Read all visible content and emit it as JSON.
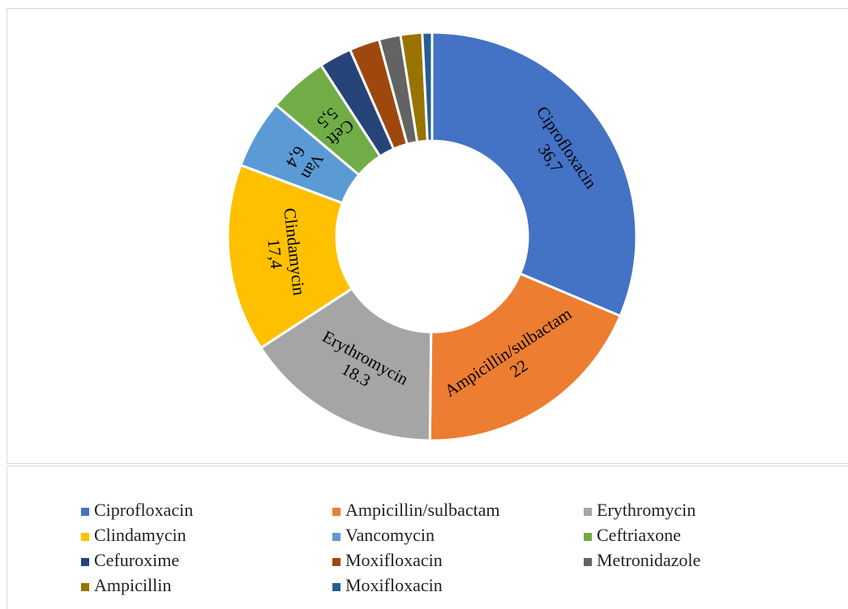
{
  "chart_data": {
    "type": "donut",
    "categories": [
      "Ciprofloxacin",
      "Ampicillin/sulbactam",
      "Erythromycin",
      "Clindamycin",
      "Vancomycin",
      "Ceftriaxone",
      "Cefuroxime",
      "Moxifloxacin",
      "Metronidazole",
      "Ampicillin",
      "Moxifloxacin"
    ],
    "values": [
      36.7,
      22,
      18.3,
      17.4,
      6.4,
      5.5,
      3,
      2.8,
      2,
      2,
      0.9
    ],
    "labels": [
      "Ciprofloxacin",
      "Ampicillin/sulbactam",
      "Erythromycin",
      "Clindamycin",
      "Van",
      "Ceft",
      null,
      null,
      null,
      null,
      null
    ],
    "value_labels": [
      "36,7",
      "22",
      "18.3",
      "17,4",
      "6,4",
      "5,5",
      null,
      null,
      null,
      null,
      null
    ],
    "colors": [
      "#4472c4",
      "#ed7d31",
      "#a5a5a5",
      "#ffc000",
      "#5b9bd5",
      "#70ad47",
      "#264478",
      "#9e480e",
      "#636363",
      "#997300",
      "#255e91"
    ],
    "legend": "bottom"
  }
}
